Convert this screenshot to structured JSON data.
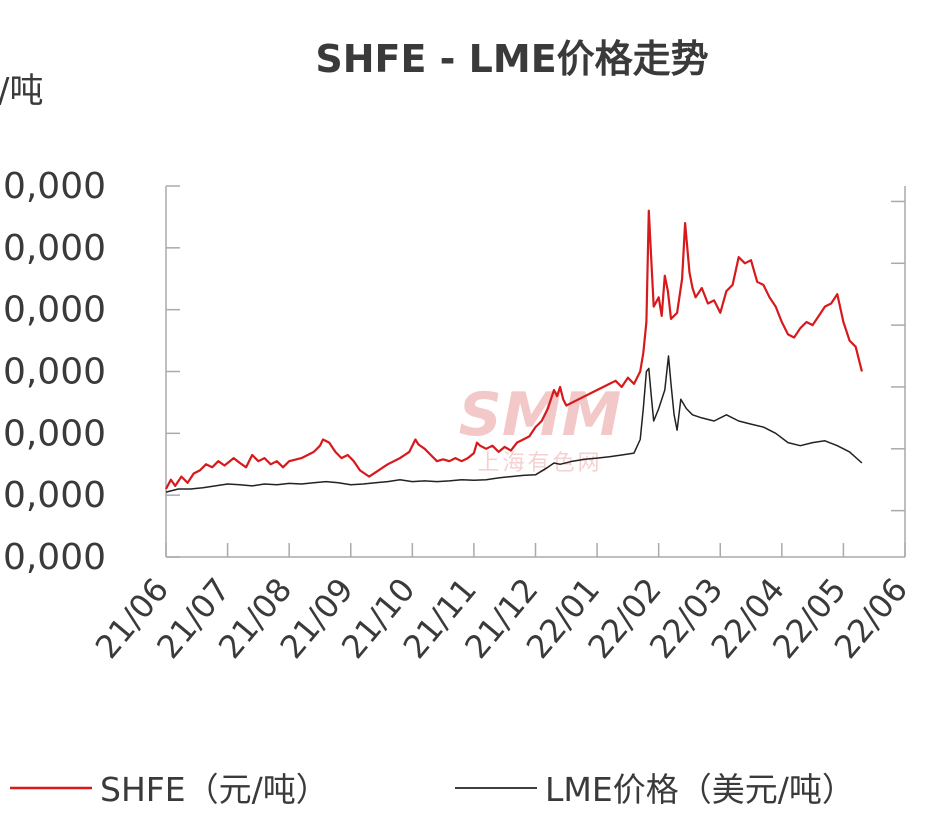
{
  "chart_data": {
    "type": "line",
    "title": "SHFE - LME价格走势",
    "unit_label": "/吨",
    "y_tick_labels": [
      "0,000",
      "0,000",
      "0,000",
      "0,000",
      "0,000",
      "0,000",
      "0,000"
    ],
    "x_tick_labels": [
      "21/06",
      "21/07",
      "21/08",
      "21/09",
      "21/10",
      "21/11",
      "21/12",
      "22/01",
      "22/02",
      "22/03",
      "22/04",
      "22/05",
      "22/06"
    ],
    "ylim": [
      0,
      6
    ],
    "grid": false,
    "legend_placement": "bottom",
    "series": [
      {
        "name": "SHFE（元/吨）",
        "color": "#d7191c",
        "points": [
          [
            0.0,
            1.1
          ],
          [
            0.08,
            1.25
          ],
          [
            0.15,
            1.15
          ],
          [
            0.25,
            1.3
          ],
          [
            0.35,
            1.2
          ],
          [
            0.45,
            1.35
          ],
          [
            0.55,
            1.4
          ],
          [
            0.65,
            1.5
          ],
          [
            0.75,
            1.45
          ],
          [
            0.85,
            1.55
          ],
          [
            0.95,
            1.48
          ],
          [
            1.1,
            1.6
          ],
          [
            1.2,
            1.52
          ],
          [
            1.3,
            1.45
          ],
          [
            1.4,
            1.65
          ],
          [
            1.5,
            1.55
          ],
          [
            1.6,
            1.6
          ],
          [
            1.7,
            1.5
          ],
          [
            1.8,
            1.55
          ],
          [
            1.9,
            1.45
          ],
          [
            2.0,
            1.55
          ],
          [
            2.2,
            1.6
          ],
          [
            2.4,
            1.7
          ],
          [
            2.5,
            1.8
          ],
          [
            2.55,
            1.9
          ],
          [
            2.65,
            1.85
          ],
          [
            2.75,
            1.7
          ],
          [
            2.85,
            1.6
          ],
          [
            2.95,
            1.65
          ],
          [
            3.05,
            1.55
          ],
          [
            3.15,
            1.4
          ],
          [
            3.3,
            1.3
          ],
          [
            3.45,
            1.4
          ],
          [
            3.6,
            1.5
          ],
          [
            3.8,
            1.6
          ],
          [
            3.95,
            1.7
          ],
          [
            4.05,
            1.9
          ],
          [
            4.1,
            1.82
          ],
          [
            4.2,
            1.75
          ],
          [
            4.3,
            1.65
          ],
          [
            4.4,
            1.55
          ],
          [
            4.5,
            1.58
          ],
          [
            4.6,
            1.55
          ],
          [
            4.7,
            1.6
          ],
          [
            4.8,
            1.55
          ],
          [
            4.9,
            1.6
          ],
          [
            5.0,
            1.68
          ],
          [
            5.05,
            1.85
          ],
          [
            5.1,
            1.8
          ],
          [
            5.2,
            1.75
          ],
          [
            5.3,
            1.8
          ],
          [
            5.4,
            1.7
          ],
          [
            5.5,
            1.78
          ],
          [
            5.6,
            1.72
          ],
          [
            5.7,
            1.85
          ],
          [
            5.8,
            1.9
          ],
          [
            5.9,
            1.95
          ],
          [
            6.0,
            2.1
          ],
          [
            6.1,
            2.2
          ],
          [
            6.2,
            2.4
          ],
          [
            6.3,
            2.7
          ],
          [
            6.35,
            2.6
          ],
          [
            6.4,
            2.75
          ],
          [
            6.45,
            2.55
          ],
          [
            6.5,
            2.45
          ],
          [
            6.6,
            2.5
          ],
          [
            6.7,
            2.55
          ],
          [
            6.8,
            2.6
          ],
          [
            6.9,
            2.65
          ],
          [
            7.0,
            2.7
          ],
          [
            7.1,
            2.75
          ],
          [
            7.2,
            2.8
          ],
          [
            7.3,
            2.85
          ],
          [
            7.4,
            2.75
          ],
          [
            7.5,
            2.9
          ],
          [
            7.6,
            2.8
          ],
          [
            7.7,
            3.0
          ],
          [
            7.75,
            3.3
          ],
          [
            7.8,
            3.8
          ],
          [
            7.84,
            5.6
          ],
          [
            7.88,
            4.8
          ],
          [
            7.92,
            4.05
          ],
          [
            8.0,
            4.2
          ],
          [
            8.05,
            3.9
          ],
          [
            8.1,
            4.55
          ],
          [
            8.15,
            4.3
          ],
          [
            8.2,
            3.85
          ],
          [
            8.3,
            3.95
          ],
          [
            8.38,
            4.5
          ],
          [
            8.43,
            5.4
          ],
          [
            8.5,
            4.6
          ],
          [
            8.55,
            4.35
          ],
          [
            8.6,
            4.2
          ],
          [
            8.7,
            4.35
          ],
          [
            8.8,
            4.1
          ],
          [
            8.9,
            4.15
          ],
          [
            9.0,
            3.95
          ],
          [
            9.1,
            4.3
          ],
          [
            9.2,
            4.4
          ],
          [
            9.3,
            4.85
          ],
          [
            9.4,
            4.75
          ],
          [
            9.5,
            4.8
          ],
          [
            9.6,
            4.45
          ],
          [
            9.7,
            4.4
          ],
          [
            9.8,
            4.2
          ],
          [
            9.9,
            4.05
          ],
          [
            10.0,
            3.8
          ],
          [
            10.1,
            3.6
          ],
          [
            10.2,
            3.55
          ],
          [
            10.3,
            3.7
          ],
          [
            10.4,
            3.8
          ],
          [
            10.5,
            3.75
          ],
          [
            10.6,
            3.9
          ],
          [
            10.7,
            4.05
          ],
          [
            10.8,
            4.1
          ],
          [
            10.9,
            4.25
          ],
          [
            11.0,
            3.8
          ],
          [
            11.1,
            3.5
          ],
          [
            11.2,
            3.4
          ],
          [
            11.3,
            3.0
          ]
        ]
      },
      {
        "name": "LME价格（美元/吨）",
        "color": "#222222",
        "points": [
          [
            0.0,
            1.05
          ],
          [
            0.2,
            1.1
          ],
          [
            0.4,
            1.1
          ],
          [
            0.6,
            1.12
          ],
          [
            0.8,
            1.15
          ],
          [
            1.0,
            1.18
          ],
          [
            1.2,
            1.17
          ],
          [
            1.4,
            1.15
          ],
          [
            1.6,
            1.18
          ],
          [
            1.8,
            1.17
          ],
          [
            2.0,
            1.19
          ],
          [
            2.2,
            1.18
          ],
          [
            2.4,
            1.2
          ],
          [
            2.6,
            1.22
          ],
          [
            2.8,
            1.2
          ],
          [
            3.0,
            1.17
          ],
          [
            3.2,
            1.18
          ],
          [
            3.4,
            1.2
          ],
          [
            3.6,
            1.22
          ],
          [
            3.8,
            1.25
          ],
          [
            4.0,
            1.22
          ],
          [
            4.2,
            1.23
          ],
          [
            4.4,
            1.22
          ],
          [
            4.6,
            1.23
          ],
          [
            4.8,
            1.25
          ],
          [
            5.0,
            1.24
          ],
          [
            5.2,
            1.25
          ],
          [
            5.4,
            1.28
          ],
          [
            5.6,
            1.3
          ],
          [
            5.8,
            1.32
          ],
          [
            6.0,
            1.33
          ],
          [
            6.2,
            1.45
          ],
          [
            6.3,
            1.52
          ],
          [
            6.4,
            1.5
          ],
          [
            6.6,
            1.55
          ],
          [
            6.8,
            1.58
          ],
          [
            7.0,
            1.6
          ],
          [
            7.2,
            1.62
          ],
          [
            7.4,
            1.65
          ],
          [
            7.6,
            1.68
          ],
          [
            7.7,
            1.9
          ],
          [
            7.75,
            2.4
          ],
          [
            7.8,
            3.0
          ],
          [
            7.84,
            3.05
          ],
          [
            7.88,
            2.6
          ],
          [
            7.92,
            2.2
          ],
          [
            8.0,
            2.4
          ],
          [
            8.1,
            2.7
          ],
          [
            8.16,
            3.25
          ],
          [
            8.2,
            2.8
          ],
          [
            8.25,
            2.3
          ],
          [
            8.3,
            2.05
          ],
          [
            8.36,
            2.55
          ],
          [
            8.45,
            2.4
          ],
          [
            8.55,
            2.3
          ],
          [
            8.7,
            2.25
          ],
          [
            8.9,
            2.2
          ],
          [
            9.1,
            2.3
          ],
          [
            9.3,
            2.2
          ],
          [
            9.5,
            2.15
          ],
          [
            9.7,
            2.1
          ],
          [
            9.9,
            2.0
          ],
          [
            10.1,
            1.85
          ],
          [
            10.3,
            1.8
          ],
          [
            10.5,
            1.85
          ],
          [
            10.7,
            1.88
          ],
          [
            10.9,
            1.8
          ],
          [
            11.1,
            1.7
          ],
          [
            11.3,
            1.52
          ]
        ]
      }
    ]
  },
  "watermark": {
    "logo": "SMM",
    "text": "上海有色网"
  }
}
